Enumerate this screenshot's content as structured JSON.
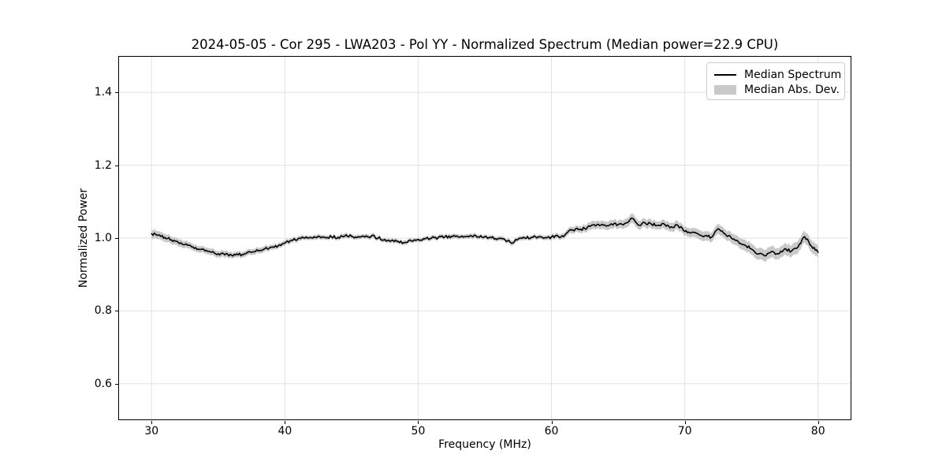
{
  "chart_data": {
    "type": "line",
    "title": "2024-05-05 - Cor 295 - LWA203 - Pol YY - Normalized Spectrum (Median power=22.9 CPU)",
    "xlabel": "Frequency (MHz)",
    "ylabel": "Normalized Power",
    "xlim": [
      27.5,
      82.5
    ],
    "ylim": [
      0.5,
      1.5
    ],
    "x_ticks": [
      30,
      40,
      50,
      60,
      70,
      80
    ],
    "y_ticks": [
      0.6,
      0.8,
      1.0,
      1.2,
      1.4
    ],
    "grid": true,
    "legend_position": "upper right",
    "x_start": 30.0,
    "x_step": 0.5,
    "noise_amplitude": 0.004,
    "series": [
      {
        "name": "Median Spectrum",
        "type": "line",
        "color": "#000000",
        "values": [
          1.012,
          1.008,
          1.002,
          0.995,
          0.988,
          0.982,
          0.976,
          0.97,
          0.965,
          0.961,
          0.957,
          0.954,
          0.953,
          0.954,
          0.957,
          0.961,
          0.965,
          0.971,
          0.975,
          0.979,
          0.986,
          0.994,
          0.999,
          1.0,
          1.001,
          1.005,
          1.002,
          1.003,
          1.002,
          1.006,
          1.005,
          1.004,
          1.003,
          1.006,
          1.0,
          0.996,
          0.993,
          0.991,
          0.988,
          0.992,
          0.996,
          0.998,
          1.0,
          1.001,
          1.003,
          1.005,
          1.003,
          1.004,
          1.006,
          1.003,
          1.004,
          1.001,
          0.999,
          0.996,
          0.986,
          0.997,
          1.0,
          1.002,
          1.003,
          1.001,
          1.003,
          1.005,
          1.008,
          1.022,
          1.024,
          1.026,
          1.035,
          1.038,
          1.036,
          1.039,
          1.037,
          1.04,
          1.055,
          1.036,
          1.042,
          1.038,
          1.035,
          1.037,
          1.031,
          1.034,
          1.018,
          1.015,
          1.012,
          1.006,
          1.002,
          1.026,
          1.012,
          1.0,
          0.991,
          0.981,
          0.97,
          0.956,
          0.951,
          0.963,
          0.957,
          0.971,
          0.964,
          0.976,
          1.004,
          0.978,
          0.961
        ]
      },
      {
        "name": "Median Abs. Dev.",
        "type": "band",
        "color": "#c9c9c9",
        "half_widths": [
          0.012,
          0.011,
          0.011,
          0.01,
          0.01,
          0.01,
          0.009,
          0.009,
          0.009,
          0.009,
          0.009,
          0.009,
          0.008,
          0.008,
          0.008,
          0.008,
          0.008,
          0.008,
          0.007,
          0.007,
          0.007,
          0.007,
          0.007,
          0.006,
          0.006,
          0.007,
          0.006,
          0.006,
          0.006,
          0.007,
          0.006,
          0.006,
          0.006,
          0.007,
          0.006,
          0.006,
          0.006,
          0.006,
          0.006,
          0.006,
          0.006,
          0.006,
          0.006,
          0.006,
          0.006,
          0.007,
          0.006,
          0.006,
          0.007,
          0.006,
          0.006,
          0.006,
          0.006,
          0.006,
          0.007,
          0.006,
          0.006,
          0.006,
          0.006,
          0.006,
          0.007,
          0.007,
          0.008,
          0.009,
          0.009,
          0.01,
          0.011,
          0.011,
          0.011,
          0.012,
          0.011,
          0.012,
          0.013,
          0.012,
          0.012,
          0.012,
          0.011,
          0.012,
          0.012,
          0.012,
          0.012,
          0.012,
          0.013,
          0.013,
          0.013,
          0.014,
          0.013,
          0.014,
          0.014,
          0.015,
          0.015,
          0.016,
          0.016,
          0.016,
          0.015,
          0.016,
          0.016,
          0.017,
          0.016,
          0.017,
          0.016
        ]
      }
    ]
  },
  "legend": {
    "items": [
      {
        "label": "Median Spectrum",
        "swatch": "line"
      },
      {
        "label": "Median Abs. Dev.",
        "swatch": "patch"
      }
    ]
  },
  "colors": {
    "background": "#ffffff",
    "line": "#000000",
    "band": "#c9c9c9",
    "grid": "#e2e2e2",
    "spine": "#000000",
    "legend_border": "#cccccc"
  }
}
